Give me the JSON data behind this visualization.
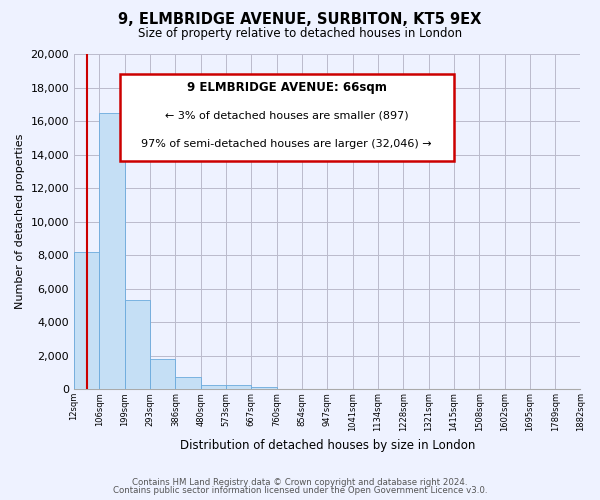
{
  "title": "9, ELMBRIDGE AVENUE, SURBITON, KT5 9EX",
  "subtitle": "Size of property relative to detached houses in London",
  "xlabel": "Distribution of detached houses by size in London",
  "ylabel": "Number of detached properties",
  "bar_values": [
    8200,
    16500,
    5300,
    1800,
    750,
    280,
    230,
    130,
    0,
    0,
    0,
    0,
    0,
    0,
    0,
    0,
    0,
    0,
    0,
    0
  ],
  "bar_color": "#c5dff5",
  "bar_edge_color": "#6aaadd",
  "annotation_title": "9 ELMBRIDGE AVENUE: 66sqm",
  "annotation_line1": "← 3% of detached houses are smaller (897)",
  "annotation_line2": "97% of semi-detached houses are larger (32,046) →",
  "annotation_box_facecolor": "#ffffff",
  "annotation_box_edgecolor": "#cc0000",
  "red_line_color": "#cc0000",
  "red_line_x": 0.5,
  "ylim": [
    0,
    20000
  ],
  "yticks": [
    0,
    2000,
    4000,
    6000,
    8000,
    10000,
    12000,
    14000,
    16000,
    18000,
    20000
  ],
  "grid_color": "#bbbbcc",
  "bg_color": "#eef2ff",
  "footer_line1": "Contains HM Land Registry data © Crown copyright and database right 2024.",
  "footer_line2": "Contains public sector information licensed under the Open Government Licence v3.0.",
  "tick_labels": [
    "12sqm",
    "106sqm",
    "199sqm",
    "293sqm",
    "386sqm",
    "480sqm",
    "573sqm",
    "667sqm",
    "760sqm",
    "854sqm",
    "947sqm",
    "1041sqm",
    "1134sqm",
    "1228sqm",
    "1321sqm",
    "1415sqm",
    "1508sqm",
    "1602sqm",
    "1695sqm",
    "1789sqm",
    "1882sqm"
  ]
}
